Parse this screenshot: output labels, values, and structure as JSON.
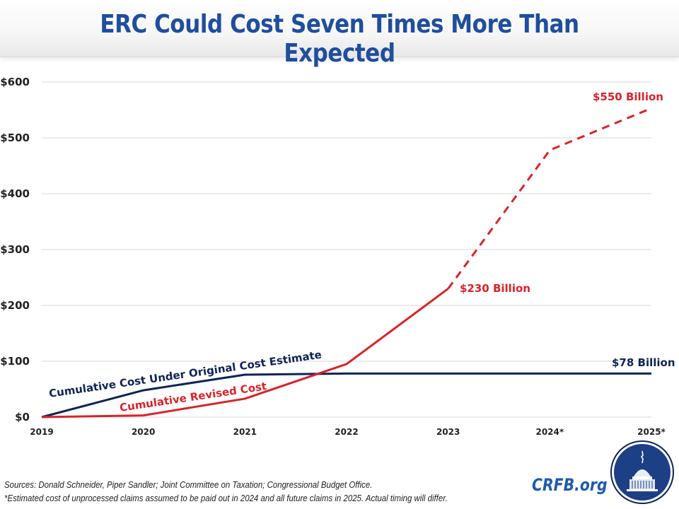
{
  "header": {
    "title": "ERC Could Cost Seven Times More Than Expected"
  },
  "footer": {
    "sources": "Sources: Donald Schneider, Piper Sandler; Joint Committee on Taxation; Congressional Budget Office.",
    "note": "*Estimated cost of unprocessed claims assumed to be paid out in 2024 and all future claims in 2025. Actual timing will differ.",
    "brand": "CRFB.org",
    "logo_icon": "capitol-dome-logo"
  },
  "colors": {
    "title": "#1f4e9e",
    "original": "#0e2457",
    "revised": "#d9232a",
    "grid": "#d9d9d9",
    "brand": "#1f5bb0"
  },
  "chart_data": {
    "type": "line",
    "title": "ERC Could Cost Seven Times More Than Expected",
    "xlabel": "",
    "ylabel": "",
    "categories": [
      "2019",
      "2020",
      "2021",
      "2022",
      "2023",
      "2024*",
      "2025*"
    ],
    "y_ticks": [
      "$0",
      "$100",
      "$200",
      "$300",
      "$400",
      "$500",
      "$600"
    ],
    "y_tick_values": [
      0,
      100,
      200,
      300,
      400,
      500,
      600
    ],
    "ylim": [
      0,
      600
    ],
    "grid": true,
    "legend": "inline labels",
    "series": [
      {
        "name": "Cumulative Cost Under Original Cost Estimate",
        "color": "#0e2457",
        "style": "solid",
        "values": [
          0,
          48,
          76,
          78,
          78,
          78,
          78
        ],
        "end_label": "$78 Billion"
      },
      {
        "name": "Cumulative Revised Cost",
        "color": "#d9232a",
        "style": "solid through 2023, dashed after",
        "dashed_from_index": 4,
        "values": [
          0,
          3,
          33,
          95,
          230,
          478,
          553
        ],
        "annotations": [
          {
            "index": 4,
            "text": "$230 Billion"
          },
          {
            "index": 6,
            "text": "$550 Billion"
          }
        ]
      }
    ]
  }
}
